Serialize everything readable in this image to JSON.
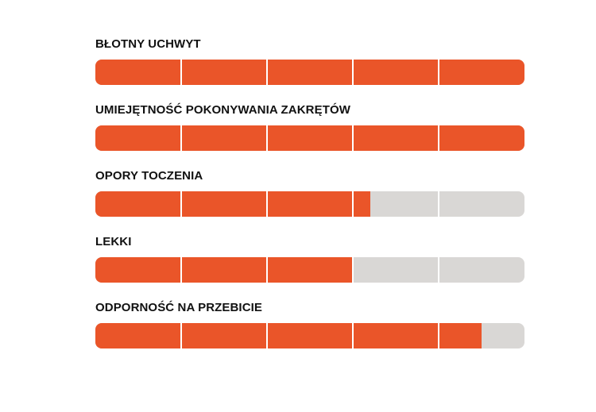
{
  "colors": {
    "fill": "#ea5529",
    "track": "#d9d7d5",
    "divider": "#ffffff",
    "label": "#111111"
  },
  "segments": 5,
  "ratings": [
    {
      "label": "BŁOTNY UCHWYT",
      "level": 1.0
    },
    {
      "label": "UMIEJĘTNOŚĆ POKONYWANIA ZAKRĘTÓW",
      "level": 1.0
    },
    {
      "label": "OPORY TOCZENIA",
      "level": 0.64
    },
    {
      "label": "LEKKI",
      "level": 0.6
    },
    {
      "label": "ODPORNOŚĆ NA PRZEBICIE",
      "level": 0.9
    }
  ]
}
